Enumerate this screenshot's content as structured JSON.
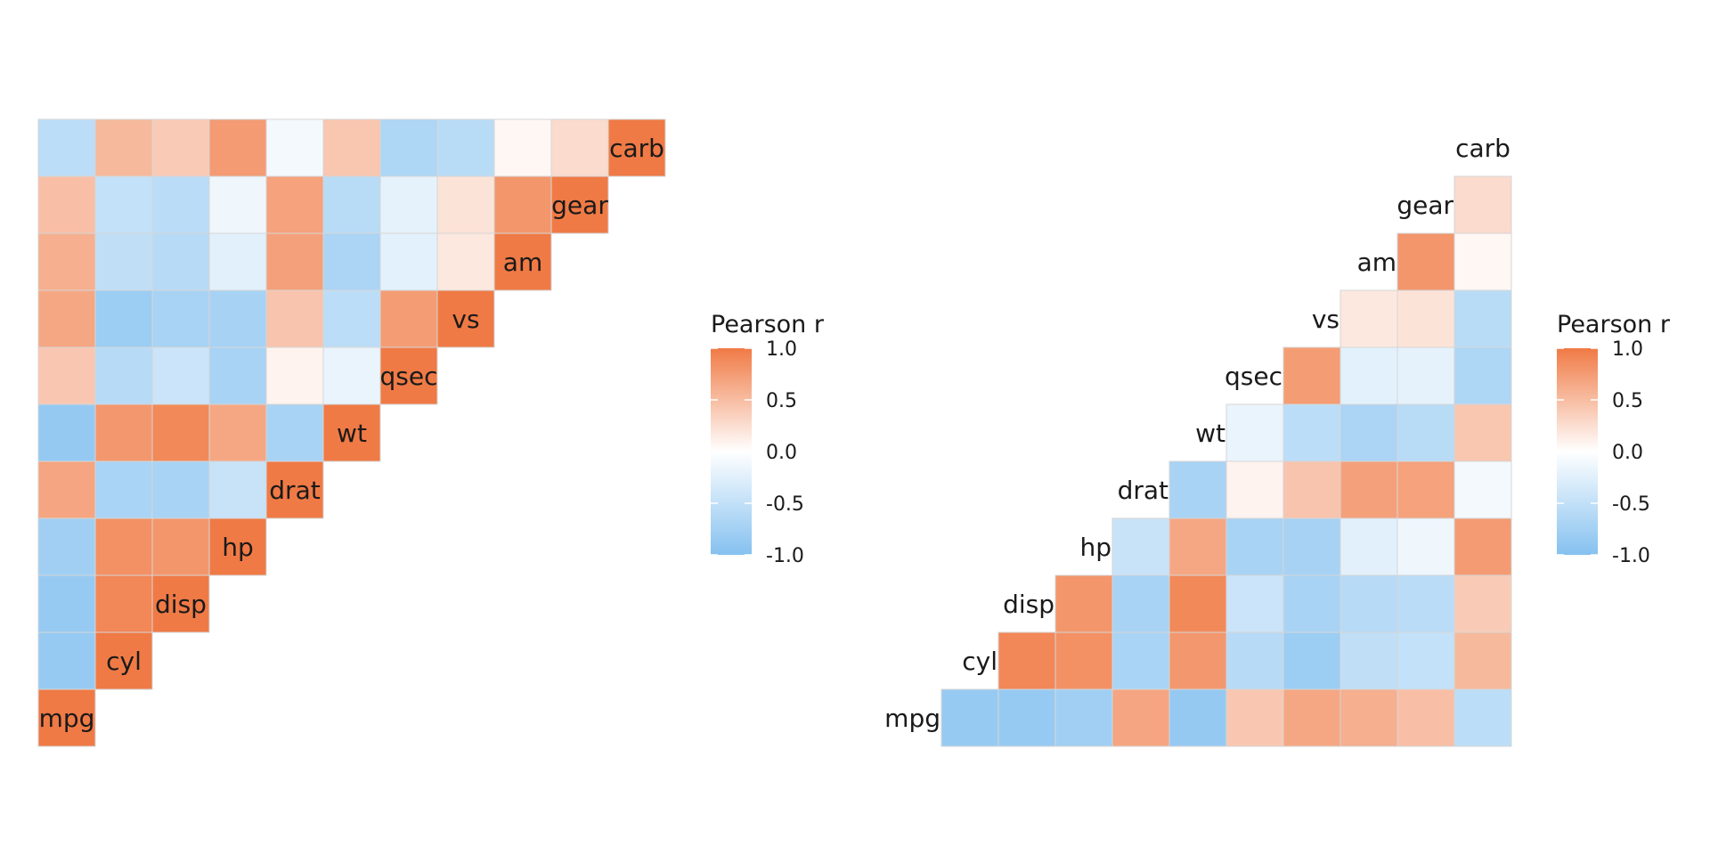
{
  "chart_data": [
    {
      "type": "heatmap",
      "layout": "lower-triangle",
      "diagonal_labels": true,
      "variables": [
        "mpg",
        "cyl",
        "disp",
        "hp",
        "drat",
        "wt",
        "qsec",
        "vs",
        "am",
        "gear",
        "carb"
      ],
      "matrix": [
        [
          1.0,
          -0.85,
          -0.85,
          -0.78,
          0.68,
          -0.87,
          0.42,
          0.66,
          0.6,
          0.48,
          -0.55
        ],
        [
          -0.85,
          1.0,
          0.9,
          0.83,
          -0.7,
          0.78,
          -0.59,
          -0.81,
          -0.52,
          -0.49,
          0.53
        ],
        [
          -0.85,
          0.9,
          1.0,
          0.79,
          -0.71,
          0.89,
          -0.43,
          -0.71,
          -0.59,
          -0.56,
          0.39
        ],
        [
          -0.78,
          0.83,
          0.79,
          1.0,
          -0.45,
          0.66,
          -0.71,
          -0.72,
          -0.24,
          -0.13,
          0.75
        ],
        [
          0.68,
          -0.7,
          -0.71,
          -0.45,
          1.0,
          -0.71,
          0.09,
          0.44,
          0.71,
          0.7,
          -0.09
        ],
        [
          -0.87,
          0.78,
          0.89,
          0.66,
          -0.71,
          1.0,
          -0.17,
          -0.55,
          -0.69,
          -0.58,
          0.43
        ],
        [
          0.42,
          -0.59,
          -0.43,
          -0.71,
          0.09,
          -0.17,
          1.0,
          0.74,
          -0.23,
          -0.21,
          -0.66
        ],
        [
          0.66,
          -0.81,
          -0.71,
          -0.72,
          0.44,
          -0.55,
          0.74,
          1.0,
          0.17,
          0.21,
          -0.57
        ],
        [
          0.6,
          -0.52,
          -0.59,
          -0.24,
          0.71,
          -0.69,
          -0.23,
          0.17,
          1.0,
          0.79,
          0.06
        ],
        [
          0.48,
          -0.49,
          -0.56,
          -0.13,
          0.7,
          -0.58,
          -0.21,
          0.21,
          0.79,
          1.0,
          0.27
        ],
        [
          -0.55,
          0.53,
          0.39,
          0.75,
          -0.09,
          0.43,
          -0.66,
          -0.57,
          0.06,
          0.27,
          1.0
        ]
      ],
      "color_scale": {
        "low": "#85C1F0",
        "mid": "#FFFFFF",
        "high": "#F07A45",
        "limits": [
          -1.0,
          1.0
        ]
      },
      "legend": {
        "title": "Pearson r",
        "ticks": [
          "1.0",
          "0.5",
          "0.0",
          "-0.5",
          "-1.0"
        ],
        "position": "right"
      }
    },
    {
      "type": "heatmap",
      "layout": "upper-triangle",
      "diagonal_labels": true,
      "variables": [
        "mpg",
        "cyl",
        "disp",
        "hp",
        "drat",
        "wt",
        "qsec",
        "vs",
        "am",
        "gear",
        "carb"
      ],
      "matrix": [
        [
          1.0,
          -0.85,
          -0.85,
          -0.78,
          0.68,
          -0.87,
          0.42,
          0.66,
          0.6,
          0.48,
          -0.55
        ],
        [
          -0.85,
          1.0,
          0.9,
          0.83,
          -0.7,
          0.78,
          -0.59,
          -0.81,
          -0.52,
          -0.49,
          0.53
        ],
        [
          -0.85,
          0.9,
          1.0,
          0.79,
          -0.71,
          0.89,
          -0.43,
          -0.71,
          -0.59,
          -0.56,
          0.39
        ],
        [
          -0.78,
          0.83,
          0.79,
          1.0,
          -0.45,
          0.66,
          -0.71,
          -0.72,
          -0.24,
          -0.13,
          0.75
        ],
        [
          0.68,
          -0.7,
          -0.71,
          -0.45,
          1.0,
          -0.71,
          0.09,
          0.44,
          0.71,
          0.7,
          -0.09
        ],
        [
          -0.87,
          0.78,
          0.89,
          0.66,
          -0.71,
          1.0,
          -0.17,
          -0.55,
          -0.69,
          -0.58,
          0.43
        ],
        [
          0.42,
          -0.59,
          -0.43,
          -0.71,
          0.09,
          -0.17,
          1.0,
          0.74,
          -0.23,
          -0.21,
          -0.66
        ],
        [
          0.66,
          -0.81,
          -0.71,
          -0.72,
          0.44,
          -0.55,
          0.74,
          1.0,
          0.17,
          0.21,
          -0.57
        ],
        [
          0.6,
          -0.52,
          -0.59,
          -0.24,
          0.71,
          -0.69,
          -0.23,
          0.17,
          1.0,
          0.79,
          0.06
        ],
        [
          0.48,
          -0.49,
          -0.56,
          -0.13,
          0.7,
          -0.58,
          -0.21,
          0.21,
          0.79,
          1.0,
          0.27
        ],
        [
          -0.55,
          0.53,
          0.39,
          0.75,
          -0.09,
          0.43,
          -0.66,
          -0.57,
          0.06,
          0.27,
          1.0
        ]
      ],
      "color_scale": {
        "low": "#85C1F0",
        "mid": "#FFFFFF",
        "high": "#F07A45",
        "limits": [
          -1.0,
          1.0
        ]
      },
      "legend": {
        "title": "Pearson r",
        "ticks": [
          "1.0",
          "0.5",
          "0.0",
          "-0.5",
          "-1.0"
        ],
        "position": "right"
      }
    }
  ]
}
